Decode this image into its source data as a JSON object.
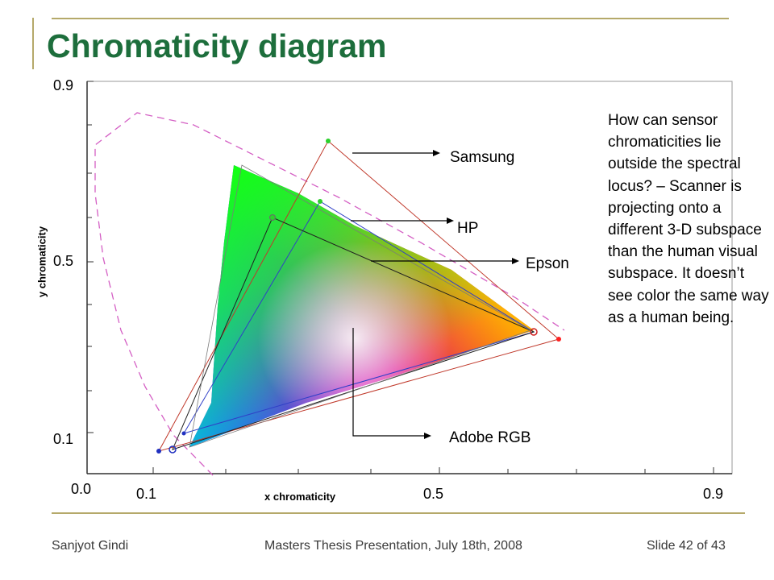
{
  "slide": {
    "title": "Chromaticity diagram",
    "footer": {
      "author": "Sanjyot Gindi",
      "event": "Masters Thesis Presentation, July 18th, 2008",
      "slide_number": "Slide 42 of 43"
    },
    "note": "How can sensor chromaticities lie outside the spectral locus? – Scanner is projecting onto a different 3-D subspace than the human visual subspace. It doesn’t see color the same way as a human being."
  },
  "plot": {
    "x_axis_label": "x chromaticity",
    "y_axis_label": "y chromaticity",
    "x_tick_labels": [
      "0.1",
      "0.5",
      "0.9"
    ],
    "y_tick_labels": [
      "0.9",
      "0.5",
      "0.1"
    ],
    "origin_label": "0.0",
    "gamuts": [
      {
        "name": "Samsung",
        "color": "#c0392b",
        "red": [
          0.71,
          0.28
        ],
        "green": [
          0.33,
          0.77
        ],
        "blue": [
          0.12,
          0.08
        ]
      },
      {
        "name": "HP",
        "color": "#2f3fc7",
        "red": [
          0.66,
          0.33
        ],
        "green": [
          0.31,
          0.65
        ],
        "blue": [
          0.14,
          0.1
        ]
      },
      {
        "name": "Epson",
        "color": "#202020",
        "red": [
          0.66,
          0.33
        ],
        "green": [
          0.24,
          0.6
        ],
        "blue": [
          0.15,
          0.09
        ]
      },
      {
        "name": "Adobe RGB",
        "color": "#7a7a7a",
        "red": [
          0.64,
          0.33
        ],
        "green": [
          0.21,
          0.71
        ],
        "blue": [
          0.15,
          0.06
        ]
      }
    ],
    "colors": {
      "spectral_locus": "#d45fc4",
      "title": "#1d6e3c",
      "rule": "#b5a96a"
    }
  }
}
